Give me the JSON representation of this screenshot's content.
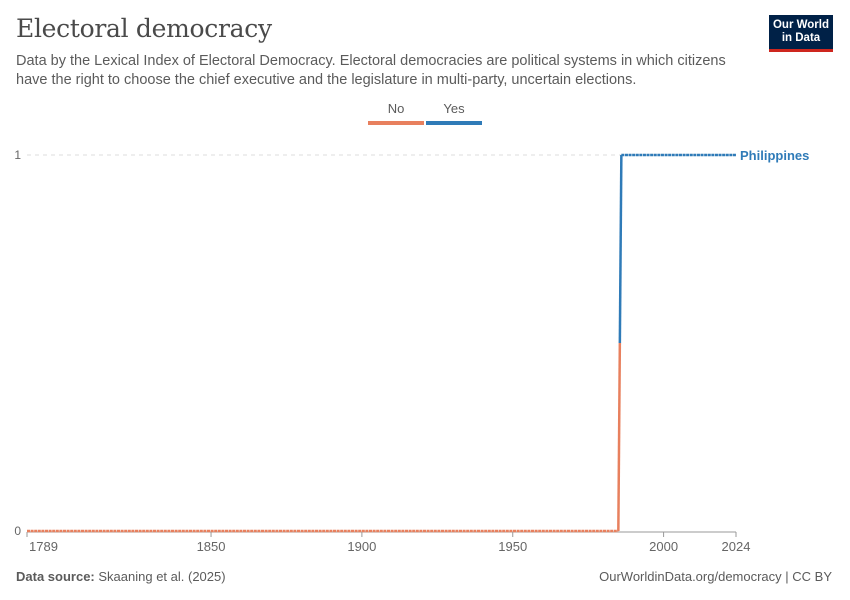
{
  "header": {
    "title": "Electoral democracy",
    "subtitle": "Data by the Lexical Index of Electoral Democracy. Electoral democracies are political systems in which citizens have the right to choose the chief executive and the legislature in multi-party, uncertain elections.",
    "logo_line1": "Our World",
    "logo_line2": "in Data"
  },
  "legend": [
    {
      "label": "No",
      "color": "#e8805e"
    },
    {
      "label": "Yes",
      "color": "#2f7bb8"
    }
  ],
  "chart_data": {
    "type": "line",
    "title": "Electoral democracy",
    "xlim": [
      1789,
      2024
    ],
    "ylim": [
      0,
      1
    ],
    "x_ticks": [
      "1789",
      "1850",
      "1900",
      "1950",
      "2000",
      "2024"
    ],
    "y_ticks": [
      "0",
      "1"
    ],
    "series": [
      {
        "name": "Philippines",
        "segments": [
          {
            "from": 1789,
            "to": 1985,
            "value": 0,
            "category": "No"
          },
          {
            "from": 1986,
            "to": 2024,
            "value": 1,
            "category": "Yes"
          }
        ]
      }
    ],
    "series_label": "Philippines"
  },
  "footer": {
    "source_label": "Data source:",
    "source": "Skaaning et al. (2025)",
    "url": "OurWorldinData.org/democracy | CC BY"
  }
}
